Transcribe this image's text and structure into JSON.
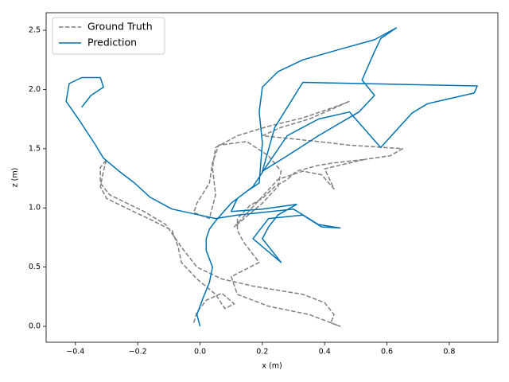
{
  "chart_data": {
    "type": "line",
    "xlabel": "x (m)",
    "ylabel": "z (m)",
    "xlim": [
      -0.494,
      0.956
    ],
    "ylim": [
      -0.134,
      2.648
    ],
    "xticks": [
      {
        "value": -0.4,
        "label": "−0.4"
      },
      {
        "value": -0.2,
        "label": "−0.2"
      },
      {
        "value": 0.0,
        "label": "0.0"
      },
      0.2,
      0.4,
      0.6,
      0.8
    ],
    "yticks": [
      {
        "value": 0.0,
        "label": "0.0"
      },
      0.5,
      {
        "value": 1.0,
        "label": "1.0"
      },
      1.5,
      {
        "value": 2.0,
        "label": "2.0"
      },
      2.5
    ],
    "legend": "upper left",
    "series": [
      {
        "name": "Ground Truth",
        "color": "#7f7f7f",
        "style": "dashed",
        "x": [
          -0.02,
          -0.01,
          0.02,
          0.07,
          0.11,
          0.08,
          0.05,
          -0.01,
          -0.06,
          -0.07,
          -0.09,
          -0.15,
          -0.23,
          -0.3,
          -0.32,
          -0.31,
          -0.3,
          -0.32,
          -0.32,
          -0.29,
          -0.18,
          -0.11,
          -0.06,
          -0.01,
          0.07,
          0.17,
          0.33,
          0.4,
          0.43,
          0.42,
          0.45,
          0.4,
          0.35,
          0.22,
          0.12,
          0.1,
          0.19,
          0.14,
          0.12,
          0.12,
          0.16,
          0.2,
          0.24,
          0.28,
          0.31,
          0.38,
          0.43,
          0.53,
          0.4,
          0.43,
          0.39,
          0.33,
          0.25,
          0.17,
          0.11,
          0.2,
          0.25,
          0.26,
          0.22,
          0.15,
          0.06,
          0.04,
          0.03,
          -0.01,
          -0.02,
          0.03,
          0.05,
          0.04,
          0.05,
          0.12,
          0.22,
          0.33,
          0.43,
          0.48,
          0.42,
          0.35,
          0.26,
          0.2,
          0.38,
          0.48,
          0.65,
          0.61,
          0.53
        ],
        "values": [
          0.03,
          0.12,
          0.22,
          0.28,
          0.19,
          0.15,
          0.27,
          0.4,
          0.54,
          0.67,
          0.81,
          0.89,
          0.99,
          1.08,
          1.18,
          1.31,
          1.41,
          1.34,
          1.21,
          1.11,
          0.97,
          0.86,
          0.67,
          0.5,
          0.4,
          0.34,
          0.27,
          0.2,
          0.1,
          0.03,
          0.0,
          0.05,
          0.1,
          0.17,
          0.27,
          0.42,
          0.54,
          0.71,
          0.81,
          0.91,
          1.02,
          1.08,
          1.18,
          1.24,
          1.31,
          1.36,
          1.38,
          1.41,
          1.33,
          1.16,
          1.28,
          1.31,
          1.24,
          1.01,
          0.84,
          1.04,
          1.18,
          1.31,
          1.44,
          1.56,
          1.53,
          1.38,
          1.21,
          1.04,
          0.96,
          0.91,
          1.11,
          1.34,
          1.51,
          1.61,
          1.69,
          1.76,
          1.85,
          1.9,
          1.83,
          1.75,
          1.68,
          1.61,
          1.56,
          1.53,
          1.5,
          1.44,
          1.41
        ]
      },
      {
        "name": "Prediction",
        "color": "#0072b2",
        "style": "solid",
        "x": [
          0.0,
          -0.01,
          0.01,
          0.03,
          0.04,
          0.02,
          0.02,
          0.03,
          0.05,
          0.1,
          0.15,
          0.19,
          0.2,
          0.19,
          0.2,
          0.25,
          0.33,
          0.45,
          0.56,
          0.63,
          0.58,
          0.56,
          0.52,
          0.56,
          0.51,
          0.38,
          0.28,
          0.2,
          0.24,
          0.33,
          0.89,
          0.88,
          0.73,
          0.68,
          0.58,
          0.48,
          0.38,
          0.28,
          0.21,
          0.17,
          0.12,
          0.1,
          0.2,
          0.31,
          0.25,
          0.22,
          0.2,
          0.26,
          0.17,
          0.22,
          0.33,
          0.39,
          0.45,
          0.38,
          0.3,
          0.12,
          0.05,
          -0.02,
          -0.09,
          -0.16,
          -0.21,
          -0.26,
          -0.31,
          -0.34,
          -0.39,
          -0.43,
          -0.42,
          -0.38,
          -0.32,
          -0.31,
          -0.35,
          -0.38
        ],
        "values": [
          0.0,
          0.1,
          0.24,
          0.37,
          0.5,
          0.64,
          0.74,
          0.82,
          0.89,
          1.04,
          1.14,
          1.21,
          1.55,
          1.81,
          2.02,
          2.15,
          2.25,
          2.34,
          2.42,
          2.52,
          2.43,
          2.32,
          2.08,
          1.95,
          1.81,
          1.61,
          1.44,
          1.31,
          1.68,
          2.06,
          2.03,
          1.97,
          1.88,
          1.8,
          1.51,
          1.81,
          1.75,
          1.61,
          1.34,
          1.18,
          1.08,
          0.97,
          0.99,
          1.03,
          0.94,
          0.84,
          0.74,
          0.54,
          0.74,
          0.91,
          0.94,
          0.84,
          0.83,
          0.86,
          0.99,
          0.94,
          0.91,
          0.95,
          0.99,
          1.09,
          1.21,
          1.31,
          1.42,
          1.55,
          1.75,
          1.9,
          2.05,
          2.1,
          2.1,
          2.02,
          1.95,
          1.85
        ]
      }
    ]
  }
}
